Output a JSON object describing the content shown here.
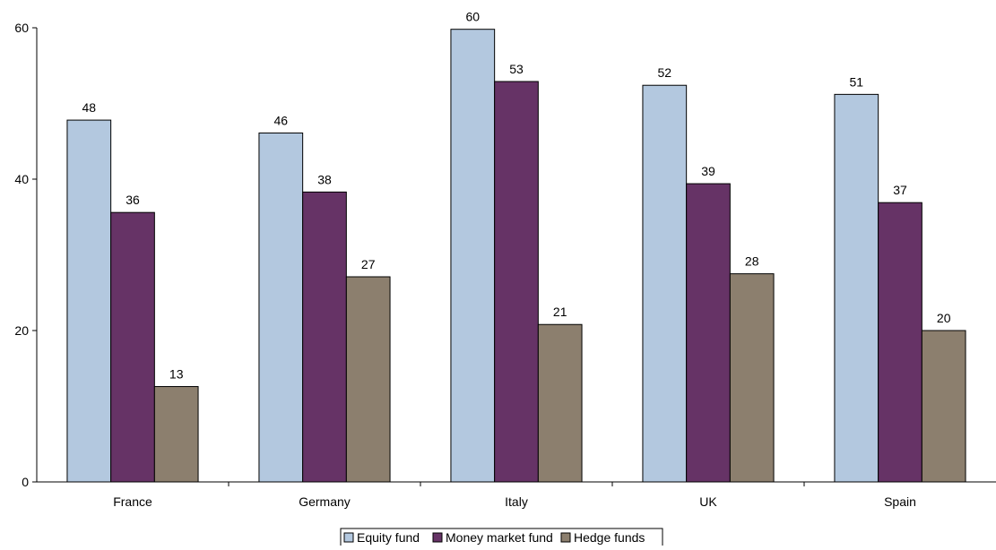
{
  "chart_data": {
    "type": "bar",
    "title": "",
    "xlabel": "",
    "ylabel": "",
    "categories": [
      "France",
      "Germany",
      "Italy",
      "UK",
      "Spain"
    ],
    "series": [
      {
        "name": "Equity fund",
        "values": [
          48,
          46,
          60,
          52,
          51
        ],
        "color": "#b3c8df"
      },
      {
        "name": "Money market fund",
        "values": [
          36,
          38,
          53,
          39,
          37
        ],
        "color": "#663366"
      },
      {
        "name": "Hedge funds",
        "values": [
          13,
          27,
          21,
          28,
          20
        ],
        "color": "#8c7f6e"
      }
    ],
    "exact_values": [
      [
        47.8,
        46.1,
        59.8,
        52.4,
        51.2
      ],
      [
        35.6,
        38.3,
        52.9,
        39.4,
        36.9
      ],
      [
        12.6,
        27.1,
        20.8,
        27.5,
        20.0
      ]
    ],
    "ylim": [
      0,
      60
    ],
    "yticks": [
      0,
      20,
      40,
      60
    ],
    "grid": false,
    "legend_position": "bottom"
  }
}
